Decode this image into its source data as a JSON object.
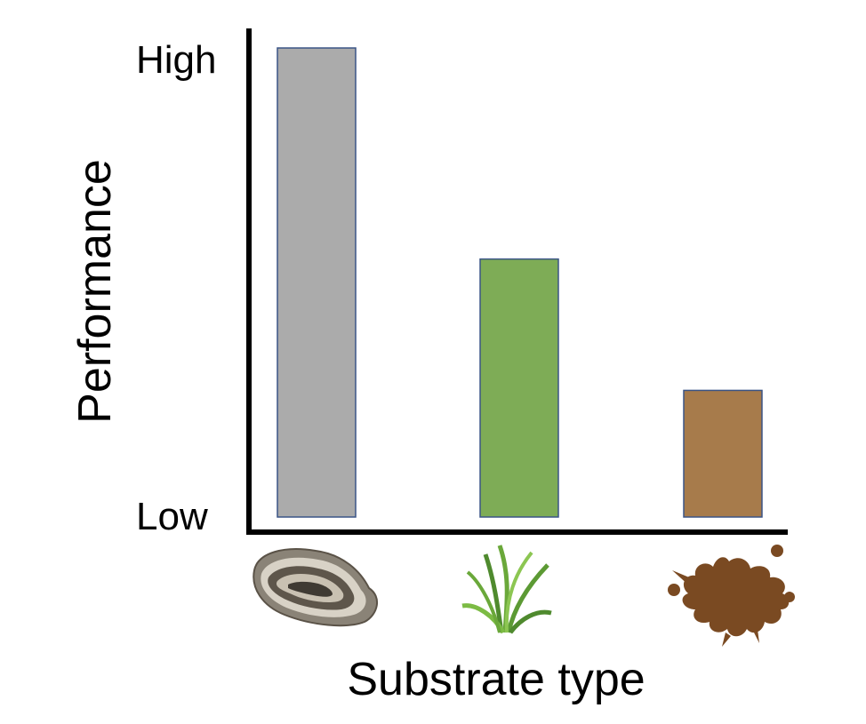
{
  "chart_data": {
    "type": "bar",
    "title": "",
    "xlabel": "Substrate type",
    "ylabel": "Performance",
    "categories": [
      "oyster shell",
      "seagrass",
      "mud"
    ],
    "category_icons": [
      "oyster-shell-icon",
      "seagrass-icon",
      "mud-splat-icon"
    ],
    "values": [
      1.0,
      0.55,
      0.27
    ],
    "ylim": [
      0,
      1
    ],
    "y_tick_labels": {
      "low": "Low",
      "high": "High"
    },
    "bar_colors": [
      "#ababab",
      "#7eac56",
      "#a77b4b"
    ],
    "bar_stroke": "#3a5486",
    "grid": false,
    "legend": "none"
  }
}
